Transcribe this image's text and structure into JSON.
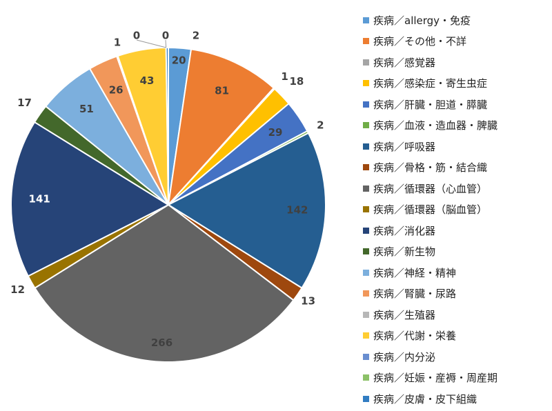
{
  "chart_data": {
    "type": "pie",
    "categories": [
      "疾病／allergy・免疫",
      "疾病／その他・不詳",
      "疾病／感覚器",
      "疾病／感染症・寄生虫症",
      "疾病／肝臓・胆道・膵臓",
      "疾病／血液・造血器・脾臓",
      "疾病／呼吸器",
      "疾病／骨格・筋・結合織",
      "疾病／循環器（心血管）",
      "疾病／循環器（脳血管）",
      "疾病／消化器",
      "疾病／新生物",
      "疾病／神経・精神",
      "疾病／腎臓・尿路",
      "疾病／生殖器",
      "疾病／代謝・栄養",
      "疾病／内分泌",
      "疾病／妊娠・産褥・周産期",
      "疾病／皮膚・皮下組織"
    ],
    "values": [
      20,
      81,
      1,
      18,
      29,
      2,
      142,
      13,
      266,
      12,
      141,
      17,
      51,
      26,
      1,
      43,
      0,
      0,
      2
    ],
    "colors": [
      "#5B9BD5",
      "#ED7D31",
      "#A5A5A5",
      "#FFC000",
      "#4472C4",
      "#70AD47",
      "#255E91",
      "#9E480E",
      "#636363",
      "#997300",
      "#264478",
      "#43682B",
      "#7CAFDD",
      "#F1975A",
      "#B7B7B7",
      "#FFCD33",
      "#698ED0",
      "#8CC168",
      "#327DC2"
    ],
    "legend_position": "right"
  }
}
